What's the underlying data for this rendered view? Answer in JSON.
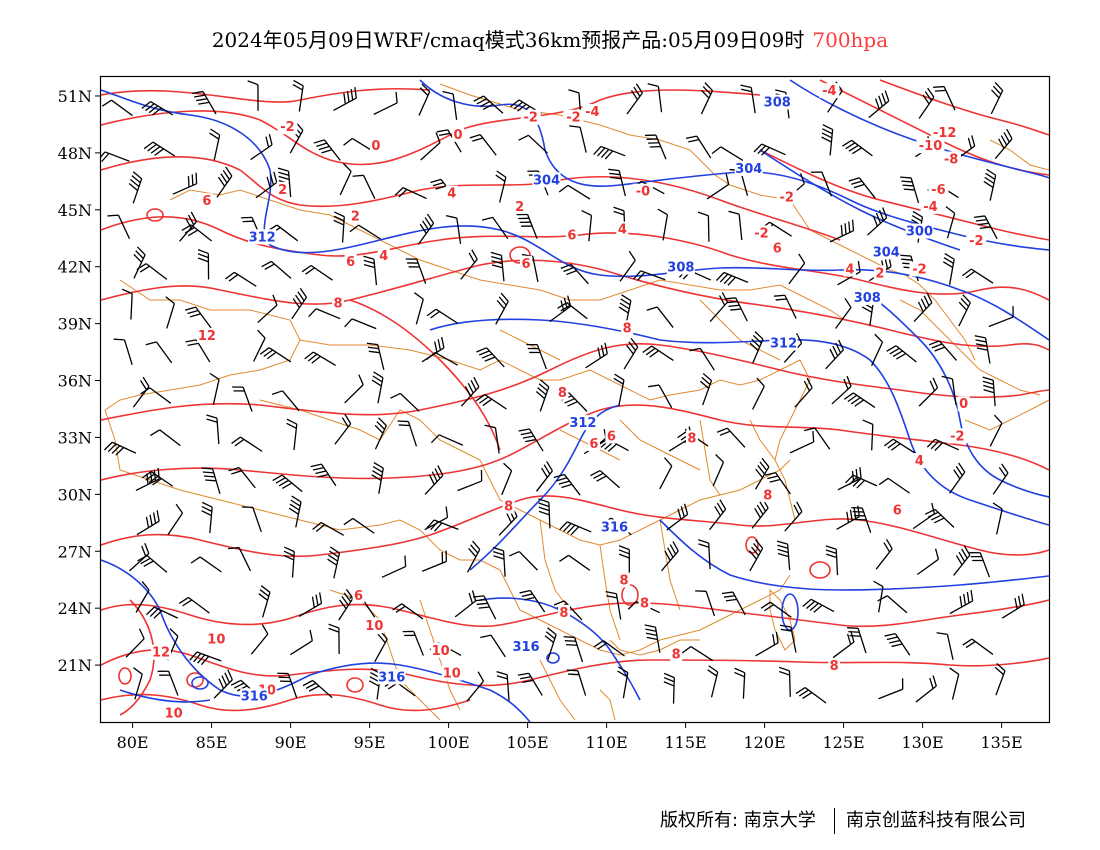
{
  "title": {
    "main": "2024年05月09日WRF/cmaq模式36km预报产品:05月09日09时",
    "level": "700hpa"
  },
  "axes": {
    "lat_labels": [
      "51N",
      "48N",
      "45N",
      "42N",
      "39N",
      "36N",
      "33N",
      "30N",
      "27N",
      "24N",
      "21N"
    ],
    "lon_labels": [
      "80E",
      "85E",
      "90E",
      "95E",
      "100E",
      "105E",
      "110E",
      "115E",
      "120E",
      "125E",
      "130E",
      "135E"
    ]
  },
  "map_extent": {
    "lon": [
      78,
      138
    ],
    "lat": [
      18,
      52
    ]
  },
  "colors": {
    "temperature_contour": "#ee3333",
    "geopotential_contour": "#2040e0",
    "boundary": "#e08a30",
    "wind_barb": "#000000",
    "frame": "#000000"
  },
  "temperature_labels": [
    {
      "text": "-4",
      "lon": 124.1,
      "lat": 51.2
    },
    {
      "text": "-4",
      "lon": 109.1,
      "lat": 50.1
    },
    {
      "text": "-2",
      "lon": 89.8,
      "lat": 49.3
    },
    {
      "text": "-2",
      "lon": 105.2,
      "lat": 49.8
    },
    {
      "text": "-2",
      "lon": 107.9,
      "lat": 49.8
    },
    {
      "text": "-12",
      "lon": 131.4,
      "lat": 49.0
    },
    {
      "text": "-10",
      "lon": 130.5,
      "lat": 48.3
    },
    {
      "text": "-8",
      "lon": 131.8,
      "lat": 47.6
    },
    {
      "text": "0",
      "lon": 100.6,
      "lat": 48.9
    },
    {
      "text": "0",
      "lon": 95.4,
      "lat": 48.3
    },
    {
      "text": "2",
      "lon": 89.5,
      "lat": 46.0
    },
    {
      "text": "-6",
      "lon": 131.0,
      "lat": 46.0
    },
    {
      "text": "-0",
      "lon": 112.3,
      "lat": 45.9
    },
    {
      "text": "4",
      "lon": 100.2,
      "lat": 45.8
    },
    {
      "text": "-2",
      "lon": 121.4,
      "lat": 45.6
    },
    {
      "text": "-4",
      "lon": 130.5,
      "lat": 45.1
    },
    {
      "text": "2",
      "lon": 104.5,
      "lat": 45.1
    },
    {
      "text": "6",
      "lon": 84.7,
      "lat": 45.4
    },
    {
      "text": "2",
      "lon": 94.1,
      "lat": 44.6
    },
    {
      "text": "4",
      "lon": 111.0,
      "lat": 43.9
    },
    {
      "text": "-2",
      "lon": 119.8,
      "lat": 43.7
    },
    {
      "text": "6",
      "lon": 107.8,
      "lat": 43.6
    },
    {
      "text": "-2",
      "lon": 133.4,
      "lat": 43.3
    },
    {
      "text": "4",
      "lon": 95.9,
      "lat": 42.5
    },
    {
      "text": "6",
      "lon": 93.8,
      "lat": 42.2
    },
    {
      "text": "6",
      "lon": 104.9,
      "lat": 42.1
    },
    {
      "text": "6",
      "lon": 120.8,
      "lat": 42.9
    },
    {
      "text": "-2",
      "lon": 129.8,
      "lat": 41.8
    },
    {
      "text": "2",
      "lon": 127.3,
      "lat": 41.6
    },
    {
      "text": "4",
      "lon": 125.4,
      "lat": 41.8
    },
    {
      "text": "8",
      "lon": 93.0,
      "lat": 40.0
    },
    {
      "text": "8",
      "lon": 111.3,
      "lat": 38.7
    },
    {
      "text": "12",
      "lon": 84.7,
      "lat": 38.3
    },
    {
      "text": "8",
      "lon": 107.2,
      "lat": 35.3
    },
    {
      "text": "0",
      "lon": 132.6,
      "lat": 34.7
    },
    {
      "text": "6",
      "lon": 110.3,
      "lat": 33.0
    },
    {
      "text": "6",
      "lon": 109.2,
      "lat": 32.6
    },
    {
      "text": "8",
      "lon": 115.4,
      "lat": 32.9
    },
    {
      "text": "-2",
      "lon": 132.2,
      "lat": 33.0
    },
    {
      "text": "4",
      "lon": 129.8,
      "lat": 31.7
    },
    {
      "text": "8",
      "lon": 120.2,
      "lat": 29.9
    },
    {
      "text": "8",
      "lon": 103.8,
      "lat": 29.3
    },
    {
      "text": "6",
      "lon": 128.4,
      "lat": 29.1
    },
    {
      "text": "8",
      "lon": 111.1,
      "lat": 25.4
    },
    {
      "text": "6",
      "lon": 94.3,
      "lat": 24.6
    },
    {
      "text": "8",
      "lon": 112.4,
      "lat": 24.2
    },
    {
      "text": "8",
      "lon": 107.3,
      "lat": 23.7
    },
    {
      "text": "10",
      "lon": 95.3,
      "lat": 23.0
    },
    {
      "text": "10",
      "lon": 85.3,
      "lat": 22.3
    },
    {
      "text": "10",
      "lon": 99.5,
      "lat": 21.7
    },
    {
      "text": "12",
      "lon": 81.8,
      "lat": 21.6
    },
    {
      "text": "8",
      "lon": 114.4,
      "lat": 21.5
    },
    {
      "text": "8",
      "lon": 124.4,
      "lat": 20.9
    },
    {
      "text": "10",
      "lon": 100.2,
      "lat": 20.5
    },
    {
      "text": "10",
      "lon": 88.5,
      "lat": 19.6
    },
    {
      "text": "10",
      "lon": 82.6,
      "lat": 18.4
    }
  ],
  "geopotential_labels": [
    {
      "text": "308",
      "lon": 120.8,
      "lat": 50.6
    },
    {
      "text": "304",
      "lon": 106.2,
      "lat": 46.5
    },
    {
      "text": "304",
      "lon": 119.0,
      "lat": 47.1
    },
    {
      "text": "300",
      "lon": 129.8,
      "lat": 43.8
    },
    {
      "text": "312",
      "lon": 88.2,
      "lat": 43.5
    },
    {
      "text": "304",
      "lon": 127.7,
      "lat": 42.7
    },
    {
      "text": "308",
      "lon": 114.7,
      "lat": 41.9
    },
    {
      "text": "308",
      "lon": 126.5,
      "lat": 40.3
    },
    {
      "text": "312",
      "lon": 121.2,
      "lat": 37.9
    },
    {
      "text": "312",
      "lon": 108.5,
      "lat": 33.7
    },
    {
      "text": "316",
      "lon": 110.5,
      "lat": 28.2
    },
    {
      "text": "316",
      "lon": 104.9,
      "lat": 21.9
    },
    {
      "text": "316",
      "lon": 96.4,
      "lat": 20.3
    },
    {
      "text": "316",
      "lon": 87.7,
      "lat": 19.3
    }
  ],
  "credit": {
    "owner": "版权所有: 南京大学",
    "company": "南京创蓝科技有限公司"
  }
}
